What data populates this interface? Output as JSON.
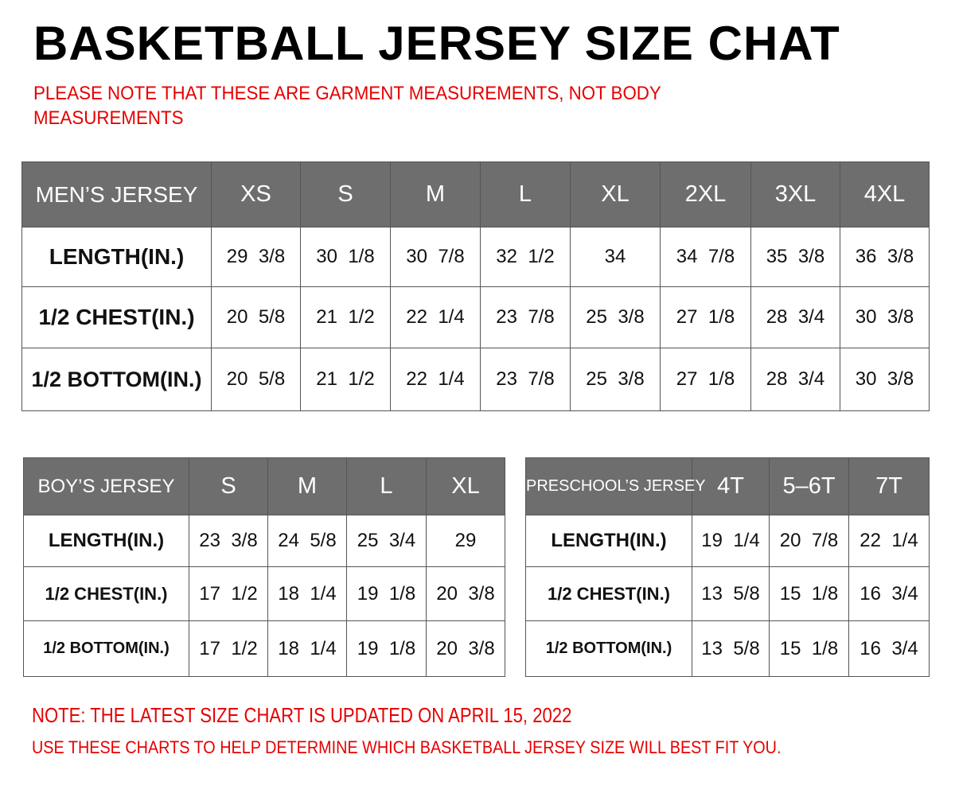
{
  "title": "BASKETBALL JERSEY SIZE CHAT",
  "note_top": [
    "PLEASE NOTE THAT THESE ARE GARMENT MEASUREMENTS, NOT BODY",
    "MEASUREMENTS"
  ],
  "colors": {
    "header_bg": "#6e6e6e",
    "note_red": "#e60000"
  },
  "mens": {
    "header": [
      "MEN’S JERSEY",
      "XS",
      "S",
      "M",
      "L",
      "XL",
      "2XL",
      "3XL",
      "4XL"
    ],
    "rows": [
      [
        "LENGTH(IN.)",
        "29  3/8",
        "30  1/8",
        "30  7/8",
        "32  1/2",
        "34",
        "34  7/8",
        "35  3/8",
        "36  3/8"
      ],
      [
        "1/2  CHEST(IN.)",
        "20  5/8",
        "21  1/2",
        "22  1/4",
        "23  7/8",
        "25  3/8",
        "27  1/8",
        "28  3/4",
        "30  3/8"
      ],
      [
        "1/2  BOTTOM(IN.)",
        "20  5/8",
        "21  1/2",
        "22  1/4",
        "23  7/8",
        "25  3/8",
        "27  1/8",
        "28  3/4",
        "30  3/8"
      ]
    ]
  },
  "boys": {
    "header": [
      "BOY’S JERSEY",
      "S",
      "M",
      "L",
      "XL"
    ],
    "rows": [
      [
        "LENGTH(IN.)",
        "23  3/8",
        "24  5/8",
        "25  3/4",
        "29"
      ],
      [
        "1/2  CHEST(IN.)",
        "17  1/2",
        "18  1/4",
        "19  1/8",
        "20  3/8"
      ],
      [
        "1/2  BOTTOM(IN.)",
        "17  1/2",
        "18  1/4",
        "19  1/8",
        "20  3/8"
      ]
    ]
  },
  "preschool": {
    "header": [
      "PRESCHOOL’S JERSEY",
      "4T",
      "5–6T",
      "7T"
    ],
    "rows": [
      [
        "LENGTH(IN.)",
        "19  1/4",
        "20  7/8",
        "22  1/4"
      ],
      [
        "1/2  CHEST(IN.)",
        "13  5/8",
        "15  1/8",
        "16  3/4"
      ],
      [
        "1/2  BOTTOM(IN.)",
        "13  5/8",
        "15  1/8",
        "16  3/4"
      ]
    ]
  },
  "note_bottom": [
    "NOTE: THE LATEST SIZE CHART IS UPDATED ON APRIL 15, 2022",
    "USE THESE CHARTS TO HELP DETERMINE WHICH  BASKETBALL JERSEY  SIZE WILL BEST FIT YOU."
  ]
}
